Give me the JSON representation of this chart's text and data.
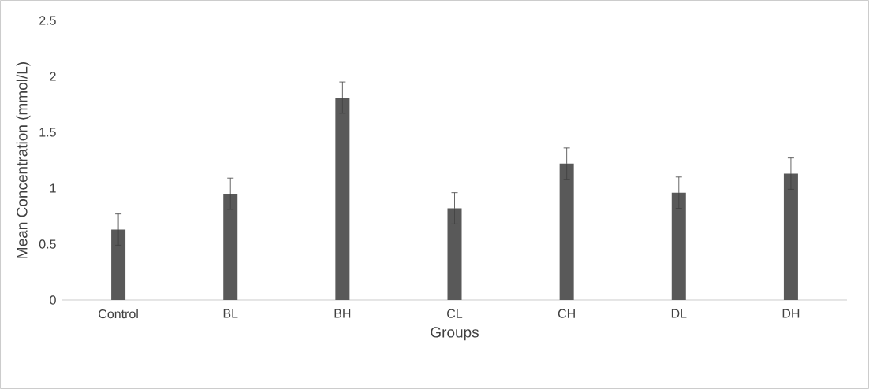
{
  "chart_data": {
    "type": "bar",
    "xlabel": "Groups",
    "ylabel": "Mean Concentration (mmol/L)",
    "categories": [
      "Control",
      "BL",
      "BH",
      "CL",
      "CH",
      "DL",
      "DH"
    ],
    "values": [
      0.63,
      0.95,
      1.81,
      0.82,
      1.22,
      0.96,
      1.13
    ],
    "errors": [
      0.14,
      0.14,
      0.14,
      0.14,
      0.14,
      0.14,
      0.14
    ],
    "color": "#595959",
    "ylim": [
      0,
      2.5
    ],
    "yticks": [
      0,
      0.5,
      1,
      1.5,
      2,
      2.5
    ]
  }
}
